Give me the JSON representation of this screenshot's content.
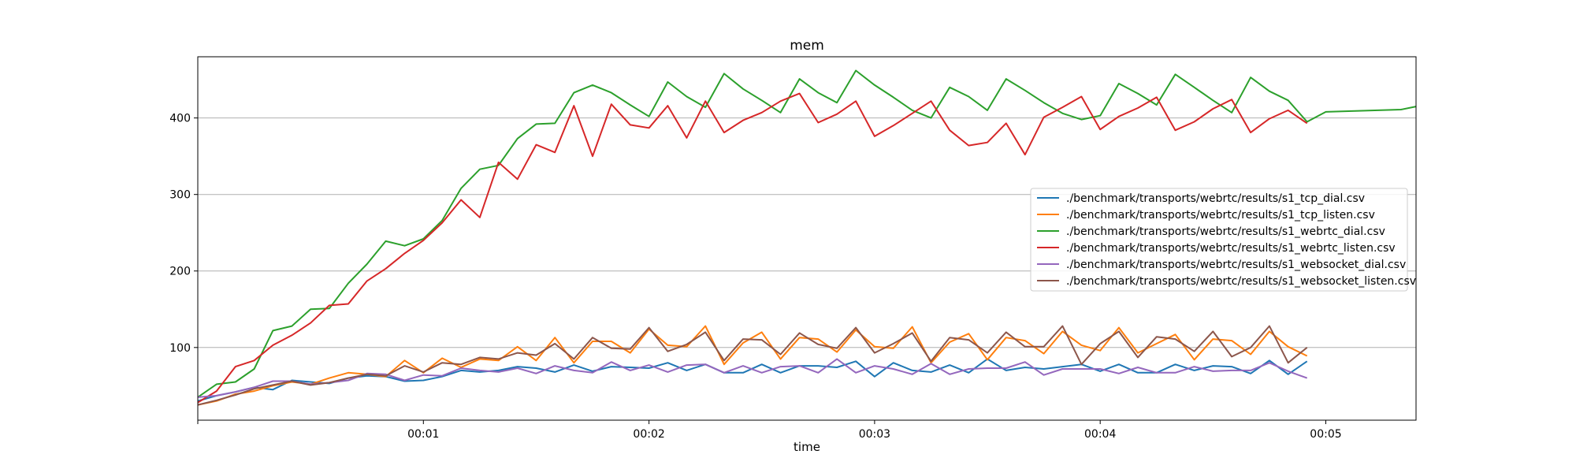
{
  "chart_data": {
    "type": "line",
    "title": "mem",
    "xlabel": "time",
    "ylabel": "",
    "x_unit": "seconds",
    "xlim": [
      0,
      5.4
    ],
    "ylim": [
      5,
      480
    ],
    "x_ticks": [
      {
        "value": 1,
        "label": "00:01"
      },
      {
        "value": 2,
        "label": "00:02"
      },
      {
        "value": 3,
        "label": "00:03"
      },
      {
        "value": 4,
        "label": "00:04"
      },
      {
        "value": 5,
        "label": "00:05"
      }
    ],
    "y_ticks": [
      100,
      200,
      300,
      400
    ],
    "grid": "horizontal",
    "legend_position": "center-right",
    "x": [
      0,
      0.083,
      0.167,
      0.25,
      0.333,
      0.417,
      0.5,
      0.583,
      0.667,
      0.75,
      0.833,
      0.917,
      1,
      1.083,
      1.167,
      1.25,
      1.333,
      1.417,
      1.5,
      1.583,
      1.667,
      1.75,
      1.833,
      1.917,
      2,
      2.083,
      2.167,
      2.25,
      2.333,
      2.417,
      2.5,
      2.583,
      2.667,
      2.75,
      2.833,
      2.917,
      3,
      3.083,
      3.167,
      3.25,
      3.333,
      3.417,
      3.5,
      3.583,
      3.667,
      3.75,
      3.833,
      3.917,
      4,
      4.083,
      4.167,
      4.25,
      4.333,
      4.417,
      4.5,
      4.583,
      4.667,
      4.75,
      4.833,
      4.917
    ],
    "series": [
      {
        "name": "./benchmark/transports/webrtc/results/s1_tcp_dial.csv",
        "color": "#1f77b4",
        "values": [
          30,
          37,
          42,
          48,
          45,
          57,
          55,
          53,
          60,
          63,
          62,
          56,
          57,
          62,
          70,
          68,
          70,
          75,
          73,
          68,
          77,
          69,
          75,
          74,
          73,
          80,
          70,
          78,
          67,
          67,
          78,
          67,
          76,
          76,
          74,
          82,
          62,
          80,
          70,
          68,
          77,
          67,
          85,
          70,
          74,
          72,
          75,
          78,
          69,
          78,
          67,
          67,
          78,
          70,
          76,
          75,
          66,
          83,
          65,
          82
        ]
      },
      {
        "name": "./benchmark/transports/webrtc/results/s1_tcp_listen.csv",
        "color": "#ff7f0e",
        "values": [
          25,
          30,
          39,
          43,
          50,
          55,
          52,
          60,
          67,
          65,
          62,
          83,
          67,
          86,
          74,
          85,
          83,
          101,
          83,
          113,
          80,
          108,
          108,
          93,
          124,
          103,
          101,
          128,
          78,
          106,
          120,
          85,
          113,
          111,
          94,
          123,
          101,
          99,
          127,
          80,
          107,
          118,
          84,
          113,
          109,
          92,
          121,
          103,
          96,
          126,
          93,
          105,
          117,
          84,
          111,
          109,
          91,
          121,
          101,
          89
        ]
      },
      {
        "name": "./benchmark/transports/webrtc/results/s1_webrtc_dial.csv",
        "color": "#2ca02c",
        "values": [
          35,
          52,
          55,
          72,
          122,
          128,
          150,
          151,
          184,
          209,
          239,
          233,
          242,
          266,
          308,
          333,
          338,
          373,
          392,
          393,
          433,
          443,
          433,
          417,
          402,
          447,
          428,
          414,
          458,
          438,
          423,
          407,
          451,
          433,
          420,
          462,
          443,
          427,
          410,
          400,
          440,
          428,
          410,
          451,
          436,
          420,
          406,
          398,
          403,
          445,
          432,
          417,
          457,
          440,
          423,
          407,
          453,
          435,
          423,
          395
        ]
      },
      {
        "name": "./benchmark/transports/webrtc/results/s1_webrtc_listen.csv",
        "color": "#d62728",
        "values": [
          28,
          43,
          75,
          83,
          103,
          116,
          132,
          155,
          157,
          187,
          203,
          223,
          240,
          263,
          293,
          270,
          342,
          320,
          365,
          355,
          416,
          350,
          418,
          391,
          387,
          416,
          374,
          422,
          381,
          397,
          407,
          422,
          432,
          394,
          405,
          422,
          376,
          390,
          406,
          422,
          384,
          364,
          368,
          393,
          352,
          401,
          414,
          428,
          385,
          402,
          413,
          427,
          384,
          395,
          412,
          424,
          381,
          399,
          410,
          393
        ]
      },
      {
        "name": "./benchmark/transports/webrtc/results/s1_websocket_dial.csv",
        "color": "#9467bd",
        "values": [
          35,
          37,
          42,
          48,
          56,
          56,
          52,
          54,
          57,
          66,
          65,
          57,
          64,
          63,
          73,
          70,
          68,
          73,
          66,
          76,
          70,
          67,
          81,
          70,
          77,
          68,
          77,
          78,
          67,
          76,
          67,
          75,
          76,
          67,
          85,
          67,
          76,
          72,
          65,
          79,
          65,
          72,
          73,
          73,
          81,
          64,
          72,
          72,
          72,
          66,
          74,
          67,
          67,
          75,
          69,
          70,
          70,
          80,
          69,
          60
        ]
      },
      {
        "name": "./benchmark/transports/webrtc/results/s1_websocket_listen.csv",
        "color": "#8c564b",
        "values": [
          25,
          31,
          38,
          46,
          51,
          56,
          51,
          54,
          60,
          65,
          63,
          76,
          68,
          80,
          78,
          87,
          85,
          93,
          90,
          105,
          85,
          113,
          99,
          98,
          126,
          95,
          104,
          120,
          83,
          111,
          110,
          91,
          119,
          104,
          99,
          126,
          93,
          105,
          119,
          82,
          113,
          110,
          93,
          120,
          101,
          101,
          128,
          78,
          105,
          121,
          87,
          114,
          111,
          95,
          121,
          88,
          100,
          128,
          80,
          100
        ]
      }
    ],
    "green_tail": {
      "x": [
        4.917,
        5,
        5.333,
        5.4
      ],
      "values": [
        395,
        408,
        411,
        415
      ]
    }
  }
}
